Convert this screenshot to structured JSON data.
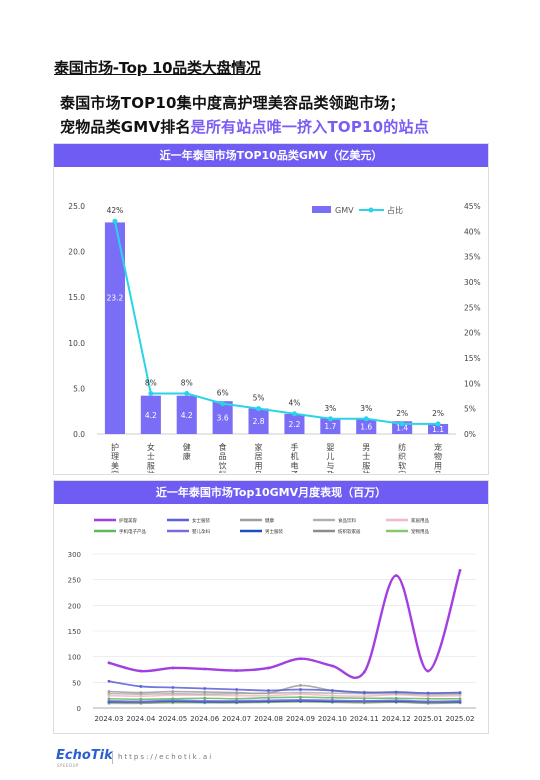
{
  "page": {
    "title": "泰国市场-Top 10品类大盘情况",
    "subtitle_line1": "泰国市场TOP10集中度高护理美容品类领跑市场；",
    "subtitle_line2_plain": "宠物品类GMV排名",
    "subtitle_line2_highlight": "是所有站点唯一挤入TOP10的站点",
    "accent_color": "#7b5cf5"
  },
  "footer": {
    "logo": "EchoTik",
    "logo_sub": "SPEEDUP",
    "url": "https://echotik.ai"
  },
  "chart_data": [
    {
      "type": "bar",
      "title": "近一年泰国市场TOP10品类GMV（亿美元）",
      "categories": [
        "护理美容",
        "女士服装",
        "健康",
        "食品饮料",
        "家居用品",
        "手机电子产品",
        "婴儿与孕妇",
        "男士服装",
        "纺织软家居",
        "宠物用品"
      ],
      "series": [
        {
          "name": "GMV",
          "type": "bar",
          "axis": "left",
          "color": "#7b6ef6",
          "values": [
            23.2,
            4.2,
            4.2,
            3.6,
            2.8,
            2.2,
            1.7,
            1.6,
            1.4,
            1.1
          ],
          "value_labels": [
            "23.2",
            "4.2",
            "4.2",
            "3.6",
            "2.8",
            "2.2",
            "1.7",
            "1.6",
            "1.4",
            "1.1"
          ]
        },
        {
          "name": "占比",
          "type": "line",
          "axis": "right",
          "color": "#2ad4e8",
          "values": [
            42,
            8,
            8,
            6,
            5,
            4,
            3,
            3,
            2,
            2
          ],
          "value_labels": [
            "42%",
            "8%",
            "8%",
            "6%",
            "5%",
            "4%",
            "3%",
            "3%",
            "2%",
            "2%"
          ]
        }
      ],
      "y_left": {
        "min": 0,
        "max": 25,
        "ticks": [
          "0.0",
          "5.0",
          "10.0",
          "15.0",
          "20.0",
          "25.0"
        ]
      },
      "y_right": {
        "min": 0,
        "max": 45,
        "ticks": [
          "0%",
          "5%",
          "10%",
          "15%",
          "20%",
          "25%",
          "30%",
          "35%",
          "40%",
          "45%"
        ]
      },
      "legend_position": "top-right",
      "grid": false
    },
    {
      "type": "line",
      "title": "近一年泰国市场Top10GMV月度表现（百万）",
      "x": [
        "2024.03",
        "2024.04",
        "2024.05",
        "2024.06",
        "2024.07",
        "2024.08",
        "2024.09",
        "2024.10",
        "2024.11",
        "2024.12",
        "2025.01",
        "2025.02"
      ],
      "y": {
        "min": 0,
        "max": 300,
        "ticks": [
          "0",
          "50",
          "100",
          "150",
          "200",
          "250",
          "300"
        ]
      },
      "series": [
        {
          "name": "护理美容",
          "color": "#a23fe0",
          "values": [
            88,
            72,
            78,
            76,
            73,
            78,
            96,
            82,
            70,
            258,
            72,
            268
          ]
        },
        {
          "name": "女士服装",
          "color": "#5b5fd8",
          "values": [
            52,
            42,
            40,
            38,
            36,
            34,
            36,
            34,
            30,
            31,
            29,
            30
          ]
        },
        {
          "name": "健康",
          "color": "#9e9e9e",
          "values": [
            32,
            30,
            32,
            31,
            30,
            29,
            44,
            34,
            31,
            30,
            29,
            30
          ]
        },
        {
          "name": "食品饮料",
          "color": "#b0b0b0",
          "values": [
            28,
            27,
            28,
            27,
            28,
            29,
            30,
            29,
            28,
            28,
            26,
            27
          ]
        },
        {
          "name": "家居用品",
          "color": "#f2b8c6",
          "values": [
            24,
            23,
            25,
            25,
            24,
            24,
            27,
            24,
            23,
            26,
            23,
            24
          ]
        },
        {
          "name": "手机电子产品",
          "color": "#5fb85f",
          "values": [
            18,
            17,
            18,
            19,
            18,
            20,
            21,
            20,
            19,
            19,
            18,
            18
          ]
        },
        {
          "name": "婴儿孕妇",
          "color": "#7a6ae0",
          "values": [
            14,
            13,
            15,
            14,
            14,
            15,
            16,
            15,
            14,
            15,
            13,
            14
          ]
        },
        {
          "name": "男士服装",
          "color": "#1f4fbf",
          "values": [
            12,
            12,
            13,
            12,
            12,
            13,
            14,
            13,
            13,
            13,
            12,
            12
          ]
        },
        {
          "name": "纺织软家居",
          "color": "#8c8c8c",
          "values": [
            11,
            10,
            12,
            11,
            11,
            12,
            13,
            12,
            11,
            12,
            10,
            11
          ]
        },
        {
          "name": "宠物用品",
          "color": "#86c86e",
          "values": [
            9,
            9,
            10,
            10,
            10,
            11,
            12,
            11,
            10,
            11,
            9,
            10
          ]
        }
      ],
      "legend_position": "top",
      "grid": true
    }
  ]
}
